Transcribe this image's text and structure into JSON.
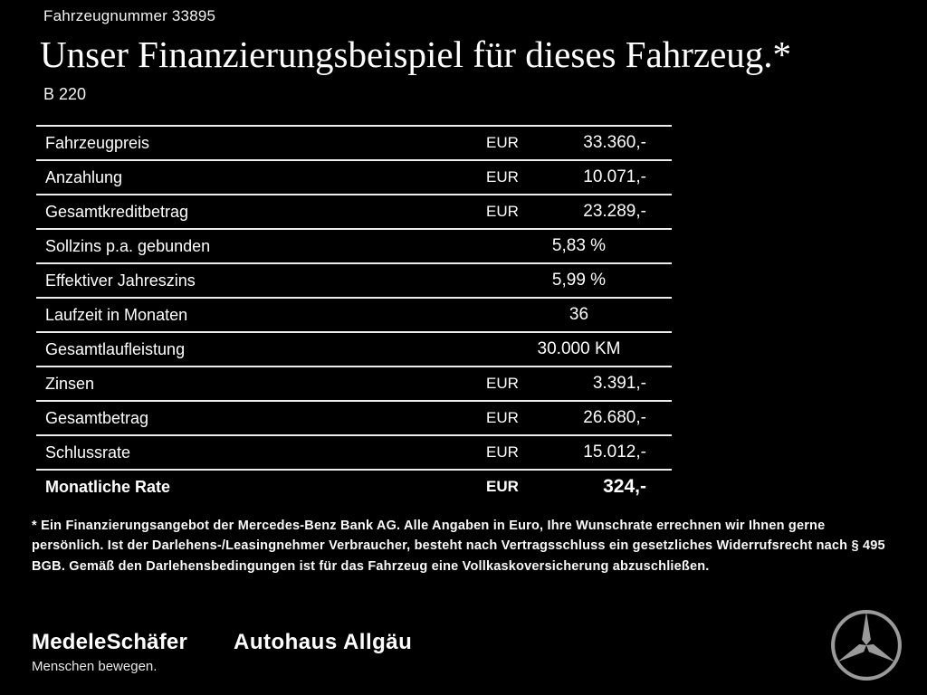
{
  "page": {
    "vehicle_number": "Fahrzeugnummer 33895",
    "title": "Unser Finanzierungsbeispiel für dieses Fahrzeug.*",
    "model": "B 220"
  },
  "table": {
    "rows": [
      {
        "label": "Fahrzeugpreis",
        "currency": "EUR",
        "value": "33.360,-",
        "bold": false
      },
      {
        "label": "Anzahlung",
        "currency": "EUR",
        "value": "10.071,-",
        "bold": false
      },
      {
        "label": "Gesamtkreditbetrag",
        "currency": "EUR",
        "value": "23.289,-",
        "bold": false
      },
      {
        "label": "Sollzins p.a. gebunden",
        "currency": "",
        "value": "5,83 %",
        "bold": false
      },
      {
        "label": "Effektiver Jahreszins",
        "currency": "",
        "value": "5,99 %",
        "bold": false
      },
      {
        "label": "Laufzeit in Monaten",
        "currency": "",
        "value": "36",
        "bold": false
      },
      {
        "label": "Gesamtlaufleistung",
        "currency": "",
        "value": "30.000 KM",
        "bold": false
      },
      {
        "label": "Zinsen",
        "currency": "EUR",
        "value": "3.391,-",
        "bold": false
      },
      {
        "label": "Gesamtbetrag",
        "currency": "EUR",
        "value": "26.680,-",
        "bold": false
      },
      {
        "label": "Schlussrate",
        "currency": "EUR",
        "value": "15.012,-",
        "bold": false
      },
      {
        "label": "Monatliche Rate",
        "currency": "EUR",
        "value": "324,-",
        "bold": true
      }
    ]
  },
  "footnote": "* Ein Finanzierungsangebot der Mercedes-Benz Bank AG. Alle Angaben in Euro, Ihre Wunschrate errechnen wir Ihnen gerne persönlich. Ist der Darlehens-/Leasingnehmer Verbraucher, besteht nach Vertragsschluss ein gesetzliches Widerrufsrecht nach § 495 BGB. Gemäß den Darlehensbedingungen ist für das Fahrzeug eine Vollkaskoversicherung abzuschließen.",
  "footer": {
    "dealer_primary": "MedeleSchäfer",
    "dealer_primary_tagline": "Menschen bewegen.",
    "dealer_secondary": "Autohaus Allgäu",
    "brand_icon": "mercedes-star-icon",
    "brand_color": "#9a9a9a"
  }
}
